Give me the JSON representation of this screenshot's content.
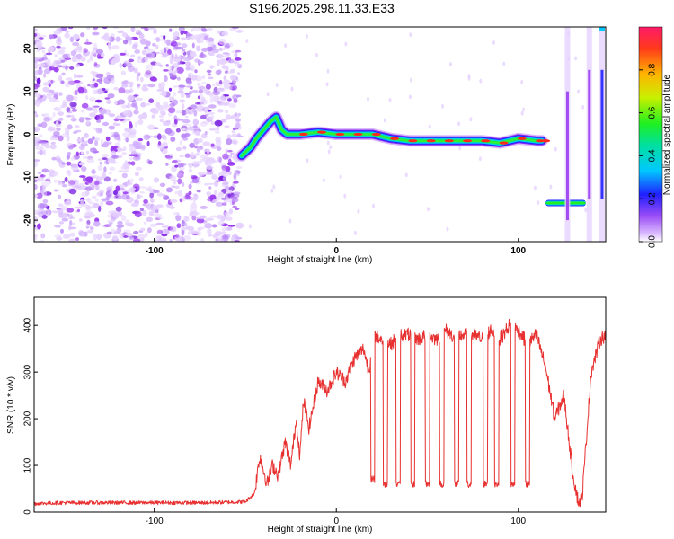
{
  "title": "S196.2025.298.11.33.E33",
  "colors": {
    "snr_line": "#e83030",
    "scatter": "#9b3cf0",
    "frame": "#000000"
  },
  "chart_data": [
    {
      "type": "heatmap",
      "title": "S196.2025.298.11.33.E33",
      "xlabel": "Height of straight line (km)",
      "ylabel": "Frequency (Hz)",
      "xlim": [
        -166,
        148
      ],
      "ylim": [
        -25,
        25
      ],
      "xticks": [
        -100,
        0,
        100
      ],
      "yticks": [
        -20,
        -10,
        0,
        10,
        20
      ],
      "noise_region": {
        "x_range": [
          -166,
          -53
        ],
        "note": "low-amplitude purple speckle"
      },
      "ridge": {
        "x": [
          -52,
          -47,
          -44,
          -40,
          -36,
          -33,
          -30,
          -27,
          -20,
          -10,
          0,
          10,
          20,
          30,
          40,
          50,
          60,
          70,
          80,
          90,
          100,
          110,
          113
        ],
        "y": [
          -5,
          -3,
          -1,
          1,
          3,
          4,
          1,
          0,
          0,
          0.5,
          0,
          0,
          0,
          -1,
          -1.5,
          -1.5,
          -1.5,
          -1.5,
          -1.5,
          -2,
          -1,
          -1.5,
          -1.5
        ]
      },
      "side_band": {
        "x_range": [
          115,
          137
        ],
        "y": -16
      },
      "vertical_streaks": [
        {
          "x": 127
        },
        {
          "x": 139
        },
        {
          "x": 146
        }
      ],
      "colorbar": {
        "label": "Normalized spectral amplitude",
        "range": [
          0.0,
          1.0
        ],
        "ticks": [
          "0.0",
          "0.2",
          "0.4",
          "0.6",
          "0.8"
        ]
      }
    },
    {
      "type": "line",
      "xlabel": "Height of straight line (km)",
      "ylabel": "SNR (10 * v/v)",
      "xlim": [
        -166,
        148
      ],
      "ylim": [
        0,
        460
      ],
      "xticks": [
        -100,
        0,
        100
      ],
      "yticks": [
        0,
        100,
        200,
        300,
        400
      ],
      "series": [
        {
          "name": "SNR",
          "x": [
            -166,
            -150,
            -130,
            -110,
            -90,
            -70,
            -50,
            -45,
            -42,
            -38,
            -35,
            -32,
            -28,
            -25,
            -22,
            -20,
            -18,
            -15,
            -10,
            -5,
            0,
            5,
            10,
            15,
            18,
            20,
            25,
            30,
            35,
            40,
            45,
            50,
            55,
            60,
            65,
            70,
            75,
            80,
            85,
            90,
            95,
            100,
            105,
            110,
            115,
            120,
            125,
            130,
            133,
            135,
            140,
            145,
            148
          ],
          "y": [
            18,
            20,
            20,
            20,
            20,
            20,
            22,
            40,
            120,
            60,
            100,
            80,
            150,
            100,
            200,
            120,
            240,
            180,
            280,
            260,
            300,
            280,
            330,
            350,
            300,
            380,
            370,
            360,
            380,
            380,
            370,
            380,
            370,
            390,
            375,
            380,
            380,
            370,
            390,
            370,
            400,
            390,
            360,
            380,
            310,
            200,
            250,
            80,
            20,
            30,
            300,
            370,
            380
          ]
        }
      ],
      "notches": {
        "x": [
          20,
          27,
          34,
          42,
          50,
          58,
          66,
          73,
          82,
          88,
          97,
          105
        ],
        "y": [
          70,
          60,
          60,
          60,
          60,
          60,
          60,
          60,
          60,
          60,
          60,
          60
        ]
      }
    }
  ]
}
